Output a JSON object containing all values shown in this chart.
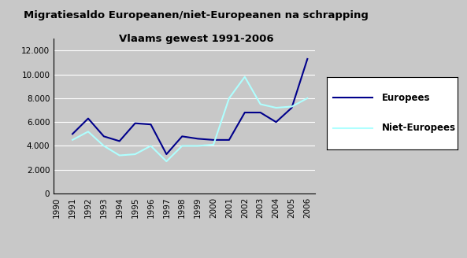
{
  "title_line1": "Migratiesaldo Europeanen/niet-Europeanen na schrapping",
  "title_line2": "Vlaams gewest 1991-2006",
  "years": [
    1990,
    1991,
    1992,
    1993,
    1994,
    1995,
    1996,
    1997,
    1998,
    1999,
    2000,
    2001,
    2002,
    2003,
    2004,
    2005,
    2006
  ],
  "europees": [
    null,
    5000,
    6300,
    4800,
    4400,
    5900,
    5800,
    3300,
    4800,
    4600,
    4500,
    4500,
    6800,
    6800,
    6000,
    7200,
    11300
  ],
  "niet_europees": [
    null,
    4500,
    5200,
    4000,
    3200,
    3300,
    4000,
    2700,
    4000,
    4000,
    4100,
    8000,
    9800,
    7500,
    7200,
    7300,
    8000
  ],
  "europees_color": "#00008B",
  "niet_europees_color": "#AFFFFF",
  "plot_bg_color": "#C8C8C8",
  "fig_bg_color": "#C8C8C8",
  "ylim": [
    0,
    13000
  ],
  "yticks": [
    0,
    2000,
    4000,
    6000,
    8000,
    10000,
    12000
  ],
  "legend_europees": "Europees",
  "legend_niet_europees": "Niet-Europees",
  "title_fontsize": 9.5,
  "tick_fontsize": 7.5,
  "legend_fontsize": 8.5,
  "line_width": 1.5
}
